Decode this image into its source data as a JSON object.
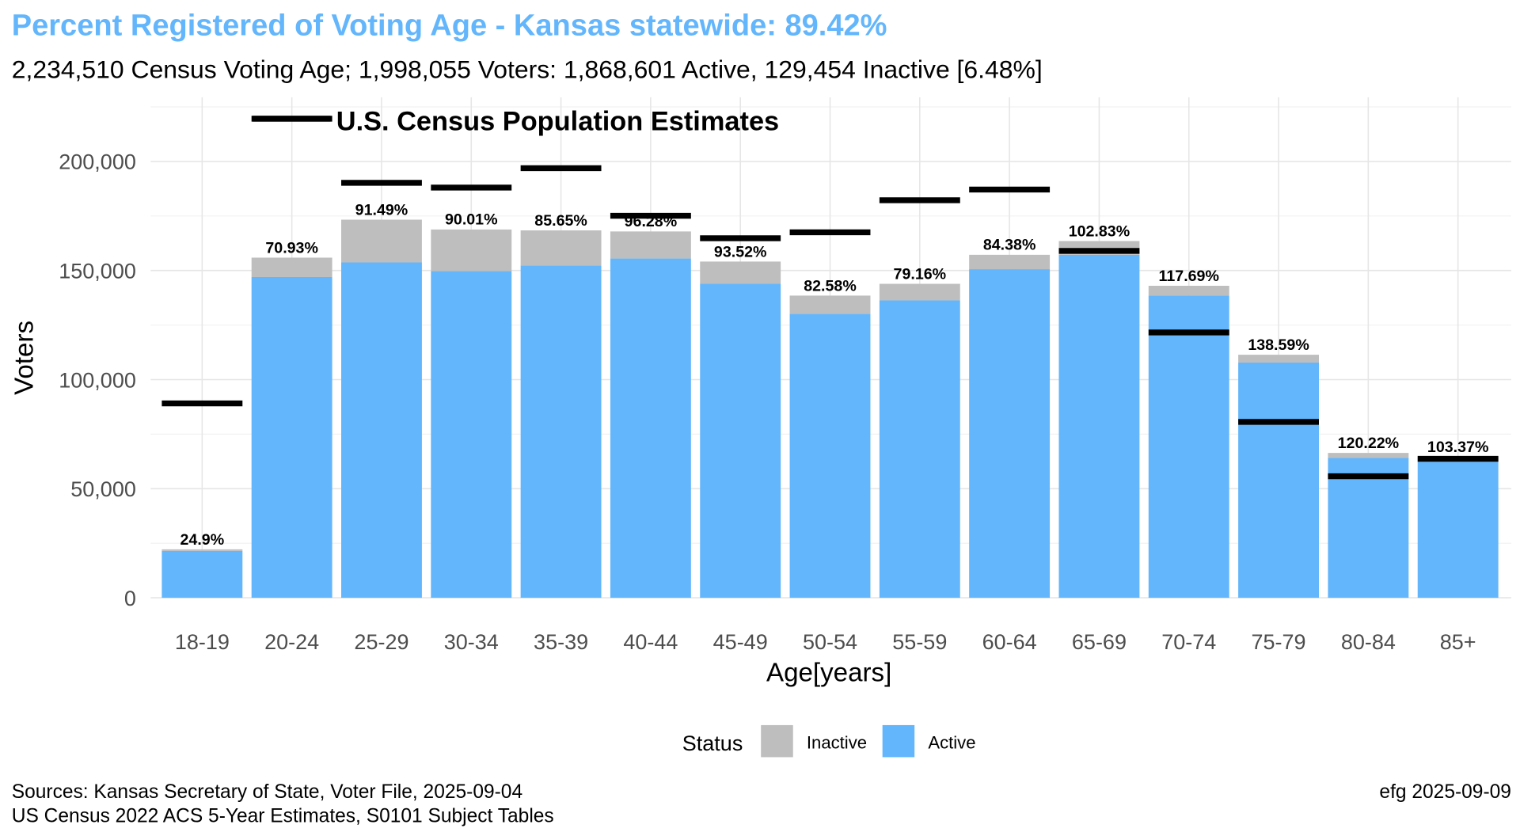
{
  "title": "Percent Registered of Voting Age - Kansas statewide: 89.42%",
  "subtitle": "2,234,510 Census Voting Age; 1,998,055 Voters:  1,868,601 Active, 129,454 Inactive [6.48%]",
  "census_legend_label": "U.S. Census Population Estimates",
  "legend": {
    "title": "Status",
    "items": [
      {
        "label": "Inactive",
        "color": "#bebebe"
      },
      {
        "label": "Active",
        "color": "#63b6fc"
      }
    ]
  },
  "footer": {
    "sources_line1": "Sources: Kansas Secretary of State, Voter File, 2025-09-04",
    "sources_line2": "US Census 2022 ACS 5-Year Estimates, S0101 Subject Tables",
    "credit": "efg 2025-09-09"
  },
  "colors": {
    "title": "#63b6fc",
    "active": "#63b6fc",
    "inactive": "#bebebe",
    "census": "#000000"
  },
  "chart_data": {
    "type": "bar",
    "stacked": true,
    "xlabel": "Age[years]",
    "ylabel": "Voters",
    "ylim": [
      0,
      220000
    ],
    "yticks": [
      0,
      50000,
      100000,
      150000,
      200000
    ],
    "ytick_labels": [
      "0",
      "50,000",
      "100,000",
      "150,000",
      "200,000"
    ],
    "categories": [
      "18-19",
      "20-24",
      "25-29",
      "30-34",
      "35-39",
      "40-44",
      "45-49",
      "50-54",
      "55-59",
      "60-64",
      "65-69",
      "70-74",
      "75-79",
      "80-84",
      "85+"
    ],
    "series": [
      {
        "name": "Active",
        "values": [
          21500,
          147000,
          153700,
          149700,
          152300,
          155500,
          143900,
          130100,
          136300,
          150600,
          157200,
          138500,
          107800,
          64100,
          62400
        ]
      },
      {
        "name": "Inactive",
        "values": [
          700,
          8900,
          19600,
          19100,
          16100,
          12400,
          10200,
          8400,
          7600,
          6600,
          6300,
          4500,
          3600,
          2300,
          2200
        ]
      }
    ],
    "census": [
      89100,
      219600,
      190200,
      188000,
      196900,
      175100,
      164800,
      167500,
      182200,
      187100,
      159000,
      121600,
      80600,
      55700,
      63700
    ],
    "percent_labels": [
      "24.9%",
      "70.93%",
      "91.49%",
      "90.01%",
      "85.65%",
      "96.28%",
      "93.52%",
      "82.58%",
      "79.16%",
      "84.38%",
      "102.83%",
      "117.69%",
      "138.59%",
      "120.22%",
      "103.37%"
    ],
    "grid": true,
    "legend_position": "bottom"
  }
}
